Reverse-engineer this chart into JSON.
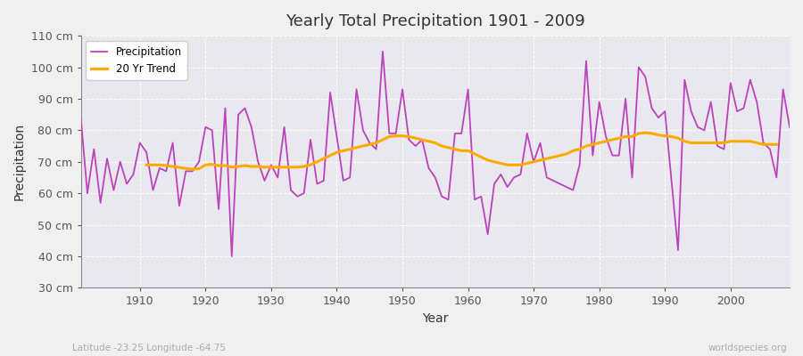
{
  "title": "Yearly Total Precipitation 1901 - 2009",
  "xlabel": "Year",
  "ylabel": "Precipitation",
  "fig_bg_color": "#f0f0f0",
  "plot_bg_color": "#e8e8ee",
  "precip_color": "#bb44bb",
  "trend_color": "#ffaa00",
  "precip_label": "Precipitation",
  "trend_label": "20 Yr Trend",
  "subtitle": "Latitude -23.25 Longitude -64.75",
  "watermark": "worldspecies.org",
  "ylim": [
    30,
    110
  ],
  "yticks": [
    30,
    40,
    50,
    60,
    70,
    80,
    90,
    100,
    110
  ],
  "xlim": [
    1901,
    2009
  ],
  "xticks": [
    1910,
    1920,
    1930,
    1940,
    1950,
    1960,
    1970,
    1980,
    1990,
    2000
  ],
  "years": [
    1901,
    1902,
    1903,
    1904,
    1905,
    1906,
    1907,
    1908,
    1909,
    1910,
    1911,
    1912,
    1913,
    1914,
    1915,
    1916,
    1917,
    1918,
    1919,
    1920,
    1921,
    1922,
    1923,
    1924,
    1925,
    1926,
    1927,
    1928,
    1929,
    1930,
    1931,
    1932,
    1933,
    1934,
    1935,
    1936,
    1937,
    1938,
    1939,
    1940,
    1941,
    1942,
    1943,
    1944,
    1945,
    1946,
    1947,
    1948,
    1949,
    1950,
    1951,
    1952,
    1953,
    1954,
    1955,
    1956,
    1957,
    1958,
    1959,
    1960,
    1961,
    1962,
    1963,
    1964,
    1965,
    1966,
    1967,
    1968,
    1969,
    1970,
    1971,
    1972,
    1973,
    1974,
    1975,
    1976,
    1977,
    1978,
    1979,
    1980,
    1981,
    1982,
    1983,
    1984,
    1985,
    1986,
    1987,
    1988,
    1989,
    1990,
    1991,
    1992,
    1993,
    1994,
    1995,
    1996,
    1997,
    1998,
    1999,
    2000,
    2001,
    2002,
    2003,
    2004,
    2005,
    2006,
    2007,
    2008,
    2009
  ],
  "precip": [
    84,
    60,
    74,
    57,
    71,
    61,
    70,
    63,
    66,
    76,
    73,
    61,
    68,
    67,
    76,
    56,
    67,
    67,
    70,
    81,
    80,
    55,
    87,
    40,
    85,
    87,
    81,
    70,
    64,
    69,
    65,
    81,
    61,
    59,
    60,
    77,
    63,
    64,
    92,
    78,
    64,
    65,
    93,
    80,
    76,
    74,
    105,
    79,
    79,
    93,
    77,
    75,
    77,
    68,
    65,
    59,
    58,
    79,
    79,
    93,
    58,
    59,
    47,
    63,
    66,
    62,
    65,
    66,
    79,
    70,
    76,
    65,
    64,
    63,
    62,
    61,
    69,
    102,
    72,
    89,
    78,
    72,
    72,
    90,
    65,
    100,
    97,
    87,
    84,
    86,
    64,
    42,
    96,
    86,
    81,
    80,
    89,
    75,
    74,
    95,
    86,
    87,
    96,
    89,
    76,
    74,
    65,
    93,
    81
  ],
  "trend": [
    null,
    null,
    null,
    null,
    null,
    null,
    null,
    null,
    null,
    null,
    69.0,
    69.0,
    69.0,
    68.8,
    68.5,
    68.2,
    67.9,
    67.6,
    67.8,
    69.0,
    69.2,
    68.8,
    68.8,
    68.3,
    68.5,
    68.8,
    68.5,
    68.5,
    68.3,
    68.3,
    68.3,
    68.3,
    68.3,
    68.3,
    68.5,
    69.0,
    70.0,
    71.0,
    72.0,
    73.0,
    73.5,
    74.0,
    74.5,
    75.0,
    75.5,
    76.0,
    77.0,
    78.0,
    78.2,
    78.2,
    78.0,
    77.5,
    77.0,
    76.5,
    76.0,
    75.0,
    74.5,
    74.0,
    73.5,
    73.5,
    72.5,
    71.5,
    70.5,
    70.0,
    69.5,
    69.0,
    69.0,
    69.0,
    69.5,
    70.0,
    70.5,
    71.0,
    71.5,
    72.0,
    72.5,
    73.5,
    74.0,
    75.0,
    75.5,
    76.0,
    76.5,
    77.0,
    77.5,
    78.0,
    78.0,
    79.0,
    79.2,
    79.0,
    78.5,
    78.2,
    78.0,
    77.5,
    76.5,
    76.0,
    76.0,
    76.0,
    76.0,
    76.0,
    76.0,
    76.5,
    76.5,
    76.5,
    76.5,
    76.0,
    75.5,
    75.5,
    75.5,
    null,
    null
  ]
}
